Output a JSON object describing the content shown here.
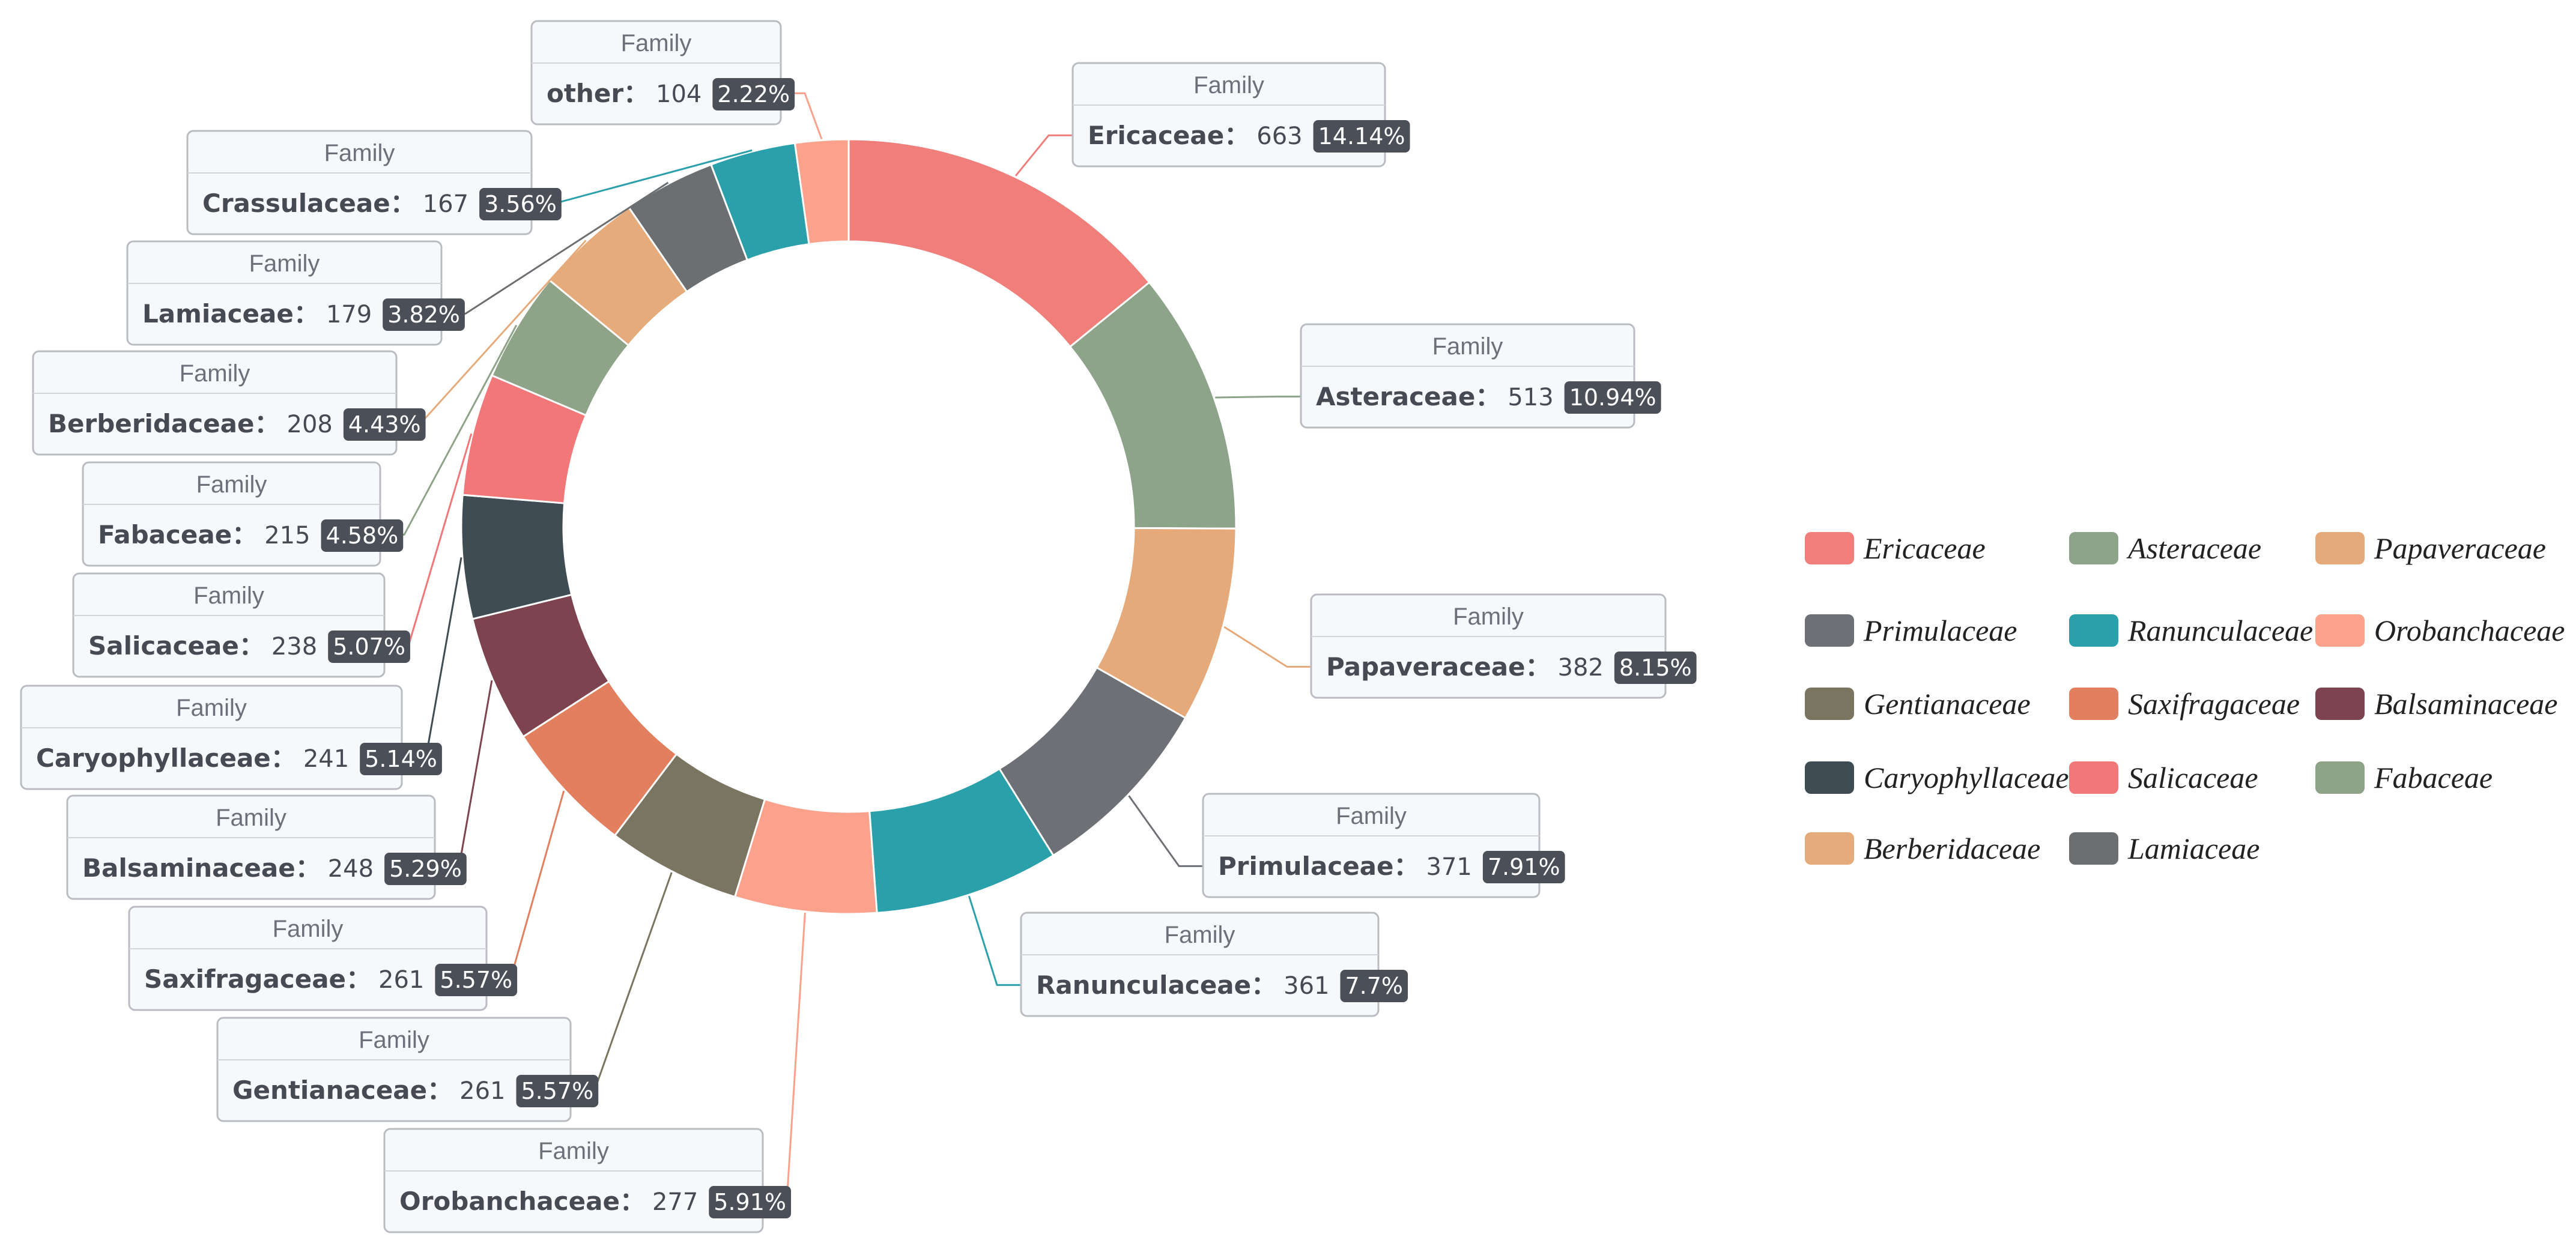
{
  "chart_data": {
    "type": "pie",
    "donut": true,
    "label_header": "Family",
    "legend_position": "right",
    "slices": [
      {
        "name": "Ericaceae",
        "value": 663,
        "percent": "14.14%",
        "color": "#f07f7c"
      },
      {
        "name": "Asteraceae",
        "value": 513,
        "percent": "10.94%",
        "color": "#8da38a"
      },
      {
        "name": "Papaveraceae",
        "value": 382,
        "percent": "8.15%",
        "color": "#e6aa7a"
      },
      {
        "name": "Primulaceae",
        "value": 371,
        "percent": "7.91%",
        "color": "#6d7074"
      },
      {
        "name": "Ranunculaceae",
        "value": 361,
        "percent": "7.7%",
        "color": "#2aa1aa"
      },
      {
        "name": "Orobanchaceae",
        "value": 277,
        "percent": "5.91%",
        "color": "#fca18c"
      },
      {
        "name": "Gentianaceae",
        "value": 261,
        "percent": "5.57%",
        "color": "#7a7560"
      },
      {
        "name": "Saxifragaceae",
        "value": 261,
        "percent": "5.57%",
        "color": "#e27f5e"
      },
      {
        "name": "Balsaminaceae",
        "value": 248,
        "percent": "5.29%",
        "color": "#7d4450"
      },
      {
        "name": "Caryophyllaceae",
        "value": 241,
        "percent": "5.14%",
        "color": "#3f4c53"
      },
      {
        "name": "Salicaceae",
        "value": 238,
        "percent": "5.07%",
        "color": "#f27779"
      },
      {
        "name": "Fabaceae",
        "value": 215,
        "percent": "4.58%",
        "color": "#8ea388"
      },
      {
        "name": "Berberidaceae",
        "value": 208,
        "percent": "4.43%",
        "color": "#e6ab7b"
      },
      {
        "name": "Lamiaceae",
        "value": 179,
        "percent": "3.82%",
        "color": "#6c6f72"
      },
      {
        "name": "Crassulaceae",
        "value": 167,
        "percent": "3.56%",
        "color": "#2aa1aa"
      },
      {
        "name": "other",
        "value": 104,
        "percent": "2.22%",
        "color": "#fca18c"
      }
    ],
    "legend": [
      "Ericaceae",
      "Asteraceae",
      "Papaveraceae",
      "Primulaceae",
      "Ranunculaceae",
      "Orobanchaceae",
      "Gentianaceae",
      "Saxifragaceae",
      "Balsaminaceae",
      "Caryophyllaceae",
      "Salicaceae",
      "Fabaceae",
      "Berberidaceae",
      "Lamiaceae"
    ]
  }
}
